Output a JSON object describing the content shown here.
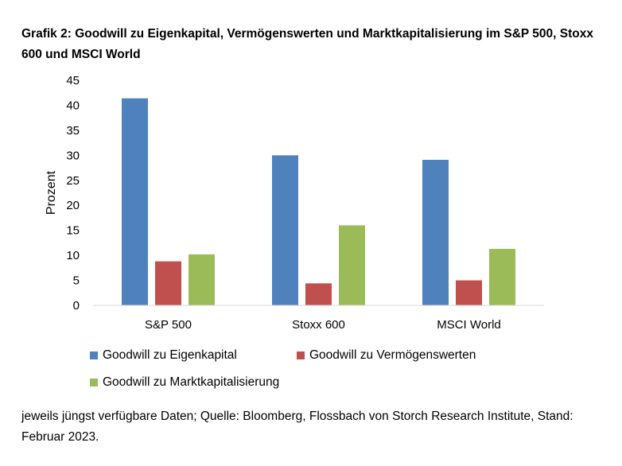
{
  "title": "Grafik 2: Goodwill zu Eigenkapital, Vermögenswerten und Marktkapitalisierung im S&P 500, Stoxx 600 und MSCI World",
  "source_note": "jeweils jüngst verfügbare Daten; Quelle: Bloomberg, Flossbach von Storch Research Institute, Stand: Februar 2023.",
  "chart_data": {
    "type": "bar",
    "title": "Grafik 2: Goodwill zu Eigenkapital, Vermögenswerten und Marktkapitalisierung im S&P 500, Stoxx 600 und MSCI World",
    "xlabel": "",
    "ylabel": "Prozent",
    "ylim": [
      0,
      45
    ],
    "yticks": [
      0,
      5,
      10,
      15,
      20,
      25,
      30,
      35,
      40,
      45
    ],
    "categories": [
      "S&P 500",
      "Stoxx 600",
      "MSCI World"
    ],
    "series": [
      {
        "name": "Goodwill zu Eigenkapital",
        "color": "#4f81bd",
        "values": [
          41.4,
          30.0,
          29.1
        ]
      },
      {
        "name": "Goodwill zu Vermögenswerten",
        "color": "#c0504d",
        "values": [
          8.8,
          4.4,
          5.0
        ]
      },
      {
        "name": "Goodwill zu Marktkapitalisierung",
        "color": "#9bbb59",
        "values": [
          10.2,
          16.0,
          11.3
        ]
      }
    ],
    "grid": false,
    "legend_position": "bottom"
  }
}
